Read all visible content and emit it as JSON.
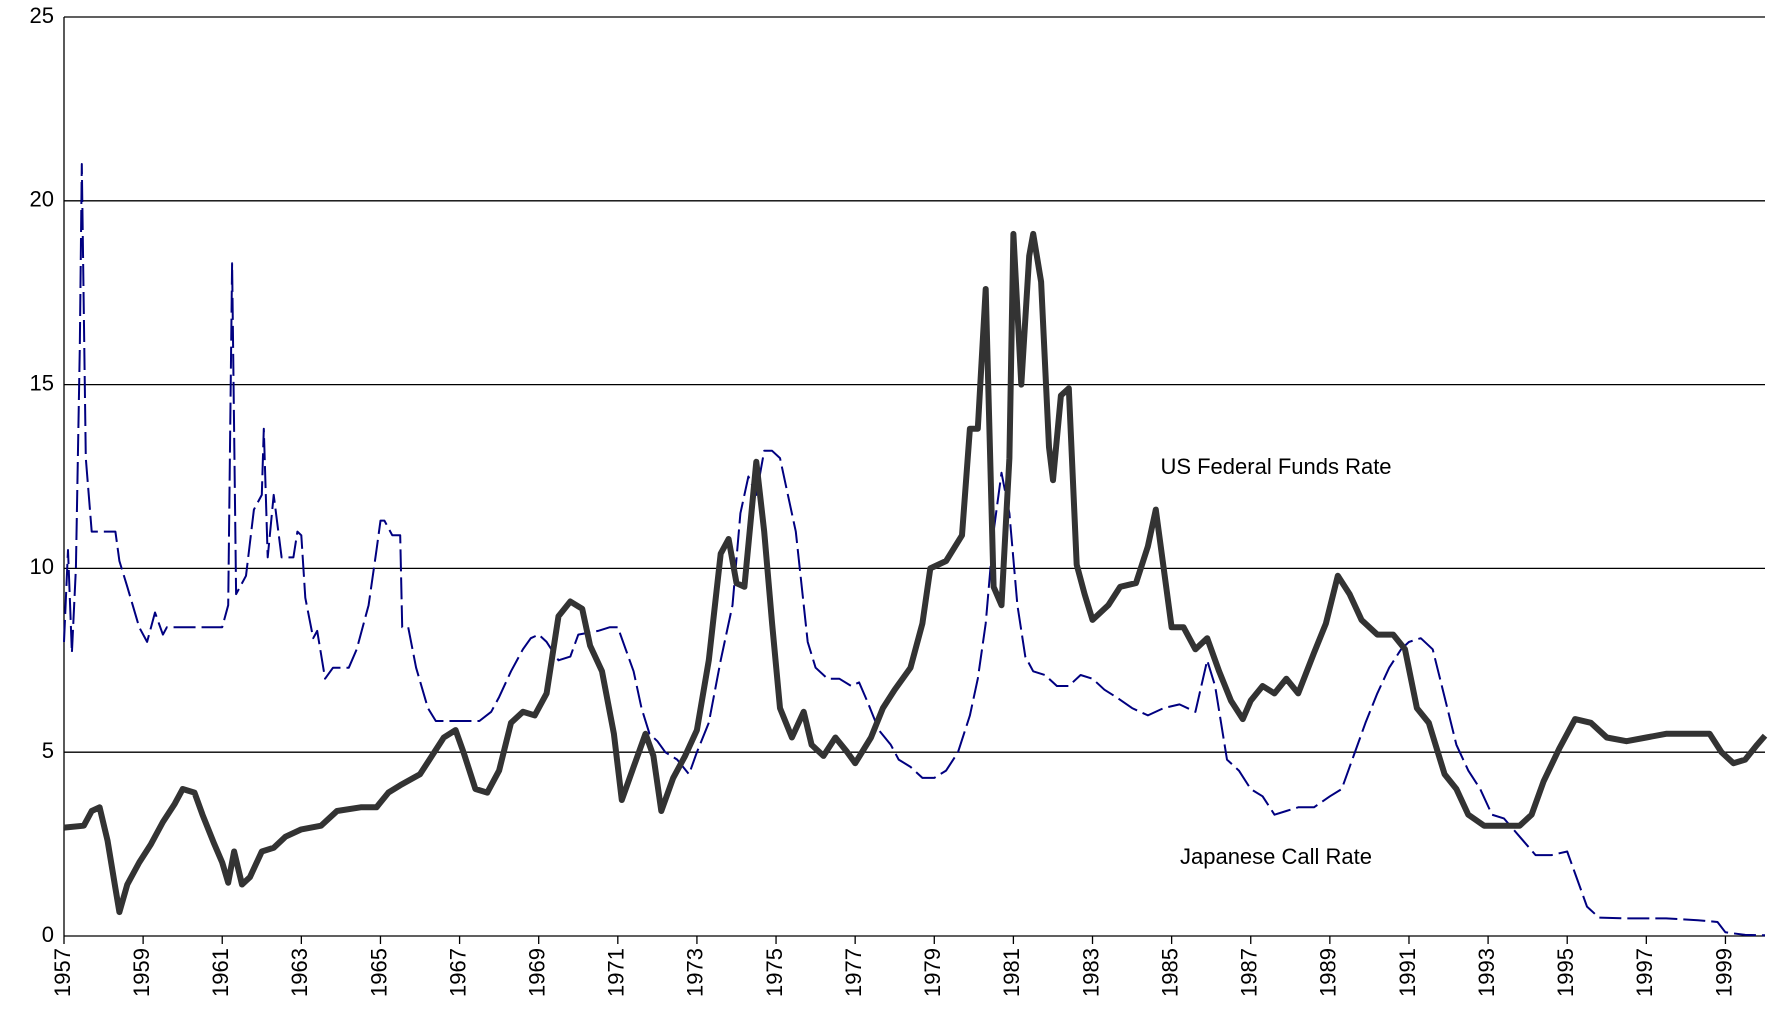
{
  "chart_data": {
    "type": "line",
    "xlim": [
      1957,
      2000
    ],
    "xticks": [
      1957,
      1959,
      1961,
      1963,
      1965,
      1967,
      1969,
      1971,
      1973,
      1975,
      1977,
      1979,
      1981,
      1983,
      1985,
      1987,
      1989,
      1991,
      1993,
      1995,
      1997,
      1999
    ],
    "ylim": [
      0,
      25
    ],
    "yticks": [
      0,
      5,
      10,
      15,
      20,
      25
    ],
    "grid": true,
    "series": [
      {
        "name": "Japanese Call Rate",
        "color": "#000080",
        "dashed": true,
        "x": [
          1957.0,
          1957.1,
          1957.2,
          1957.3,
          1957.4,
          1957.45,
          1957.55,
          1957.7,
          1958.0,
          1958.3,
          1958.4,
          1958.6,
          1958.9,
          1959.1,
          1959.3,
          1959.5,
          1959.6,
          1960.5,
          1961.0,
          1961.15,
          1961.25,
          1961.35,
          1961.6,
          1961.8,
          1962.0,
          1962.05,
          1962.15,
          1962.3,
          1962.5,
          1962.8,
          1962.9,
          1963.0,
          1963.1,
          1963.3,
          1963.4,
          1963.6,
          1963.8,
          1964.2,
          1964.4,
          1964.7,
          1964.9,
          1965.0,
          1965.1,
          1965.3,
          1965.5,
          1965.55,
          1965.7,
          1965.9,
          1966.2,
          1966.4,
          1967.0,
          1967.5,
          1967.8,
          1968.0,
          1968.3,
          1968.6,
          1968.8,
          1969.0,
          1969.2,
          1969.5,
          1969.8,
          1970.0,
          1970.5,
          1970.8,
          1971.0,
          1971.2,
          1971.4,
          1971.6,
          1971.8,
          1972.0,
          1972.2,
          1972.5,
          1972.8,
          1973.0,
          1973.3,
          1973.6,
          1973.9,
          1974.1,
          1974.3,
          1974.5,
          1974.7,
          1974.9,
          1975.1,
          1975.3,
          1975.5,
          1975.8,
          1976.0,
          1976.3,
          1976.6,
          1976.9,
          1977.1,
          1977.3,
          1977.6,
          1977.9,
          1978.1,
          1978.4,
          1978.7,
          1979.0,
          1979.3,
          1979.6,
          1979.9,
          1980.1,
          1980.3,
          1980.5,
          1980.7,
          1980.9,
          1981.1,
          1981.3,
          1981.5,
          1981.8,
          1982.1,
          1982.4,
          1982.7,
          1983.0,
          1983.3,
          1983.6,
          1984.0,
          1984.4,
          1984.8,
          1985.2,
          1985.6,
          1985.9,
          1986.1,
          1986.4,
          1986.7,
          1987.0,
          1987.3,
          1987.6,
          1987.9,
          1988.2,
          1988.6,
          1989.0,
          1989.3,
          1989.6,
          1989.9,
          1990.2,
          1990.5,
          1990.8,
          1991.0,
          1991.3,
          1991.6,
          1991.9,
          1992.2,
          1992.5,
          1992.8,
          1993.1,
          1993.4,
          1993.8,
          1994.2,
          1994.6,
          1995.0,
          1995.2,
          1995.5,
          1995.8,
          1996.5,
          1997.5,
          1998.3,
          1998.8,
          1999.0,
          1999.5,
          2000.0
        ],
        "values": [
          8,
          10.5,
          7.7,
          10,
          16,
          21,
          13,
          11,
          11,
          11,
          10.2,
          9.5,
          8.4,
          8.0,
          8.8,
          8.2,
          8.4,
          8.4,
          8.4,
          9,
          18.3,
          9.3,
          9.8,
          11.6,
          12,
          13.8,
          10.3,
          12,
          10.3,
          10.3,
          11,
          10.9,
          9.2,
          8.1,
          8.3,
          7.0,
          7.3,
          7.3,
          7.8,
          9,
          10.5,
          11.3,
          11.3,
          10.9,
          10.9,
          8.4,
          8.4,
          7.3,
          6.2,
          5.85,
          5.85,
          5.85,
          6.1,
          6.5,
          7.2,
          7.8,
          8.1,
          8.2,
          8.0,
          7.5,
          7.6,
          8.2,
          8.3,
          8.4,
          8.4,
          7.8,
          7.2,
          6.2,
          5.5,
          5.3,
          5.0,
          4.8,
          4.4,
          5.0,
          5.8,
          7.5,
          9,
          11.5,
          12.5,
          12,
          13.2,
          13.2,
          13,
          12,
          11,
          8,
          7.3,
          7.0,
          7.0,
          6.8,
          6.9,
          6.4,
          5.6,
          5.2,
          4.8,
          4.6,
          4.3,
          4.3,
          4.5,
          5.0,
          6.0,
          7,
          8.5,
          11,
          12.6,
          11.5,
          9,
          7.6,
          7.2,
          7.1,
          6.8,
          6.8,
          7.1,
          7.0,
          6.7,
          6.5,
          6.2,
          6.0,
          6.2,
          6.3,
          6.1,
          7.5,
          6.8,
          4.8,
          4.5,
          4.0,
          3.8,
          3.3,
          3.4,
          3.5,
          3.5,
          3.8,
          4.0,
          4.9,
          5.8,
          6.6,
          7.3,
          7.8,
          8.0,
          8.1,
          7.8,
          6.5,
          5.2,
          4.5,
          4.0,
          3.3,
          3.2,
          2.7,
          2.2,
          2.2,
          2.3,
          1.7,
          0.8,
          0.5,
          0.48,
          0.48,
          0.43,
          0.38,
          0.1,
          0.03,
          0.02
        ]
      },
      {
        "name": "US Federal Funds Rate",
        "color": "#333333",
        "dashed": false,
        "x": [
          1957.0,
          1957.5,
          1957.7,
          1957.9,
          1958.1,
          1958.3,
          1958.4,
          1958.6,
          1958.9,
          1959.2,
          1959.5,
          1959.8,
          1960.0,
          1960.3,
          1960.5,
          1960.8,
          1961.0,
          1961.15,
          1961.3,
          1961.5,
          1961.7,
          1962.0,
          1962.3,
          1962.6,
          1963.0,
          1963.5,
          1963.9,
          1964.5,
          1964.9,
          1965.2,
          1965.5,
          1966.0,
          1966.3,
          1966.6,
          1966.9,
          1967.1,
          1967.4,
          1967.7,
          1968.0,
          1968.3,
          1968.6,
          1968.9,
          1969.2,
          1969.5,
          1969.8,
          1970.1,
          1970.3,
          1970.6,
          1970.9,
          1971.1,
          1971.4,
          1971.7,
          1971.9,
          1972.1,
          1972.4,
          1972.7,
          1973.0,
          1973.3,
          1973.6,
          1973.8,
          1974.0,
          1974.2,
          1974.5,
          1974.7,
          1974.9,
          1975.1,
          1975.4,
          1975.7,
          1975.9,
          1976.2,
          1976.5,
          1976.8,
          1977.0,
          1977.4,
          1977.7,
          1978.0,
          1978.4,
          1978.7,
          1978.9,
          1979.3,
          1979.7,
          1979.9,
          1980.1,
          1980.3,
          1980.5,
          1980.7,
          1980.9,
          1981.0,
          1981.2,
          1981.4,
          1981.5,
          1981.7,
          1981.9,
          1982.0,
          1982.2,
          1982.4,
          1982.6,
          1982.8,
          1983.0,
          1983.4,
          1983.7,
          1984.1,
          1984.4,
          1984.6,
          1984.8,
          1985.0,
          1985.3,
          1985.6,
          1985.9,
          1986.2,
          1986.5,
          1986.8,
          1987.0,
          1987.3,
          1987.6,
          1987.9,
          1988.2,
          1988.6,
          1988.9,
          1989.2,
          1989.5,
          1989.8,
          1990.2,
          1990.6,
          1990.9,
          1991.2,
          1991.5,
          1991.9,
          1992.2,
          1992.5,
          1992.9,
          1993.3,
          1993.8,
          1994.1,
          1994.4,
          1994.8,
          1995.2,
          1995.6,
          1996.0,
          1996.5,
          1997.0,
          1997.5,
          1998.0,
          1998.6,
          1998.9,
          1999.2,
          1999.5,
          1999.8,
          2000.0
        ],
        "values": [
          2.95,
          3.0,
          3.4,
          3.5,
          2.6,
          1.3,
          0.65,
          1.4,
          2.0,
          2.5,
          3.1,
          3.6,
          4.0,
          3.9,
          3.3,
          2.5,
          2.0,
          1.45,
          2.3,
          1.4,
          1.6,
          2.3,
          2.4,
          2.7,
          2.9,
          3.0,
          3.4,
          3.5,
          3.5,
          3.9,
          4.1,
          4.4,
          4.9,
          5.4,
          5.6,
          5.0,
          4.0,
          3.9,
          4.5,
          5.8,
          6.1,
          6.0,
          6.6,
          8.7,
          9.1,
          8.9,
          7.9,
          7.2,
          5.5,
          3.7,
          4.6,
          5.5,
          4.9,
          3.4,
          4.3,
          4.9,
          5.6,
          7.5,
          10.4,
          10.8,
          9.6,
          9.5,
          12.9,
          11.0,
          8.5,
          6.2,
          5.4,
          6.1,
          5.2,
          4.9,
          5.4,
          5.0,
          4.7,
          5.4,
          6.2,
          6.7,
          7.3,
          8.5,
          10.0,
          10.2,
          10.9,
          13.8,
          13.8,
          17.6,
          9.5,
          9.0,
          13.0,
          19.1,
          15.0,
          18.5,
          19.1,
          17.8,
          13.3,
          12.4,
          14.7,
          14.9,
          10.1,
          9.3,
          8.6,
          9.0,
          9.5,
          9.6,
          10.6,
          11.6,
          10.0,
          8.4,
          8.4,
          7.8,
          8.1,
          7.2,
          6.4,
          5.9,
          6.4,
          6.8,
          6.6,
          7.0,
          6.6,
          7.7,
          8.5,
          9.8,
          9.3,
          8.6,
          8.2,
          8.2,
          7.8,
          6.2,
          5.8,
          4.4,
          4.0,
          3.3,
          3.0,
          3.0,
          3.0,
          3.3,
          4.2,
          5.1,
          5.9,
          5.8,
          5.4,
          5.3,
          5.4,
          5.5,
          5.5,
          5.5,
          5.0,
          4.7,
          4.8,
          5.2,
          5.45
        ]
      }
    ]
  }
}
